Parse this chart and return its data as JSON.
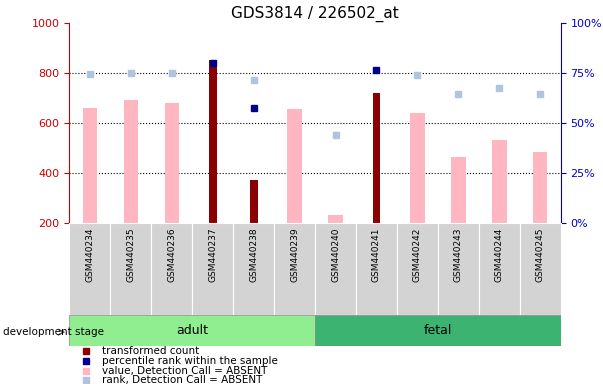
{
  "title": "GDS3814 / 226502_at",
  "samples": [
    "GSM440234",
    "GSM440235",
    "GSM440236",
    "GSM440237",
    "GSM440238",
    "GSM440239",
    "GSM440240",
    "GSM440241",
    "GSM440242",
    "GSM440243",
    "GSM440244",
    "GSM440245"
  ],
  "groups": [
    "adult",
    "adult",
    "adult",
    "adult",
    "adult",
    "adult",
    "fetal",
    "fetal",
    "fetal",
    "fetal",
    "fetal",
    "fetal"
  ],
  "transformed_count": [
    null,
    null,
    null,
    850,
    370,
    null,
    null,
    720,
    null,
    null,
    null,
    null
  ],
  "percentile_rank_val": [
    null,
    null,
    null,
    840,
    660,
    null,
    null,
    810,
    null,
    null,
    null,
    null
  ],
  "absent_value": [
    660,
    690,
    680,
    null,
    null,
    655,
    230,
    null,
    640,
    465,
    530,
    485
  ],
  "absent_rank_val": [
    795,
    800,
    800,
    null,
    770,
    null,
    550,
    null,
    790,
    715,
    740,
    715
  ],
  "ylim_left": [
    200,
    1000
  ],
  "ylim_right": [
    0,
    100
  ],
  "left_ticks": [
    200,
    400,
    600,
    800,
    1000
  ],
  "right_ticks": [
    0,
    25,
    50,
    75,
    100
  ],
  "color_dark_red": "#8B0000",
  "color_dark_blue": "#00008B",
  "color_light_pink": "#FFB6C1",
  "color_light_blue": "#B0C4DE",
  "color_adult_bg": "#90EE90",
  "color_fetal_bg": "#3CB371",
  "left_tick_color": "#CC0000",
  "right_tick_color": "#0000CC",
  "grid_color": "black",
  "background_color": "#FFFFFF",
  "n_adult": 6,
  "n_fetal": 6
}
